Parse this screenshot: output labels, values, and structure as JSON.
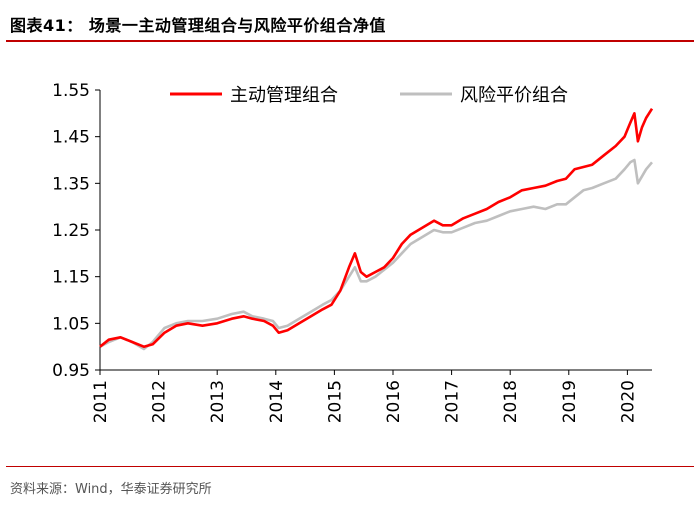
{
  "figure": {
    "title": "图表41：  场景一主动管理组合与风险平价组合净值",
    "source": "资料来源：Wind，华泰证券研究所"
  },
  "chart_data": {
    "type": "line",
    "title": "",
    "xlabel": "",
    "ylabel": "",
    "ylim": [
      0.95,
      1.55
    ],
    "yticks": [
      "0.95",
      "1.05",
      "1.15",
      "1.25",
      "1.35",
      "1.45",
      "1.55"
    ],
    "xlim": [
      2011,
      2020.42
    ],
    "xticks": [
      "2011",
      "2012",
      "2013",
      "2014",
      "2015",
      "2016",
      "2017",
      "2018",
      "2019",
      "2020"
    ],
    "grid": false,
    "legend_position": "top",
    "series": [
      {
        "name": "主动管理组合",
        "color": "#ff0000",
        "x": [
          2011.0,
          2011.15,
          2011.35,
          2011.55,
          2011.75,
          2011.9,
          2012.1,
          2012.3,
          2012.5,
          2012.75,
          2013.0,
          2013.25,
          2013.45,
          2013.6,
          2013.8,
          2013.95,
          2014.05,
          2014.2,
          2014.4,
          2014.6,
          2014.8,
          2014.95,
          2015.1,
          2015.25,
          2015.35,
          2015.45,
          2015.55,
          2015.7,
          2015.85,
          2016.0,
          2016.15,
          2016.3,
          2016.5,
          2016.7,
          2016.85,
          2017.0,
          2017.2,
          2017.4,
          2017.6,
          2017.8,
          2018.0,
          2018.2,
          2018.4,
          2018.6,
          2018.8,
          2018.95,
          2019.1,
          2019.25,
          2019.4,
          2019.6,
          2019.8,
          2019.95,
          2020.05,
          2020.12,
          2020.18,
          2020.25,
          2020.32,
          2020.42
        ],
        "y": [
          1.0,
          1.015,
          1.02,
          1.01,
          1.0,
          1.005,
          1.03,
          1.045,
          1.05,
          1.045,
          1.05,
          1.06,
          1.065,
          1.06,
          1.055,
          1.045,
          1.03,
          1.035,
          1.05,
          1.065,
          1.08,
          1.09,
          1.12,
          1.17,
          1.2,
          1.16,
          1.15,
          1.16,
          1.17,
          1.19,
          1.22,
          1.24,
          1.255,
          1.27,
          1.26,
          1.26,
          1.275,
          1.285,
          1.295,
          1.31,
          1.32,
          1.335,
          1.34,
          1.345,
          1.355,
          1.36,
          1.38,
          1.385,
          1.39,
          1.41,
          1.43,
          1.45,
          1.48,
          1.5,
          1.44,
          1.47,
          1.49,
          1.51
        ]
      },
      {
        "name": "风险平价组合",
        "color": "#bfbfbf",
        "x": [
          2011.0,
          2011.15,
          2011.35,
          2011.55,
          2011.75,
          2011.9,
          2012.1,
          2012.3,
          2012.5,
          2012.75,
          2013.0,
          2013.25,
          2013.45,
          2013.6,
          2013.8,
          2013.95,
          2014.05,
          2014.2,
          2014.4,
          2014.6,
          2014.8,
          2014.95,
          2015.1,
          2015.25,
          2015.35,
          2015.45,
          2015.55,
          2015.7,
          2015.85,
          2016.0,
          2016.15,
          2016.3,
          2016.5,
          2016.7,
          2016.85,
          2017.0,
          2017.2,
          2017.4,
          2017.6,
          2017.8,
          2018.0,
          2018.2,
          2018.4,
          2018.6,
          2018.8,
          2018.95,
          2019.1,
          2019.25,
          2019.4,
          2019.6,
          2019.8,
          2019.95,
          2020.05,
          2020.12,
          2020.18,
          2020.25,
          2020.32,
          2020.42
        ],
        "y": [
          1.0,
          1.01,
          1.02,
          1.01,
          0.995,
          1.01,
          1.04,
          1.05,
          1.055,
          1.055,
          1.06,
          1.07,
          1.075,
          1.065,
          1.06,
          1.055,
          1.04,
          1.045,
          1.06,
          1.075,
          1.09,
          1.1,
          1.12,
          1.15,
          1.17,
          1.14,
          1.14,
          1.15,
          1.165,
          1.18,
          1.2,
          1.22,
          1.235,
          1.25,
          1.245,
          1.245,
          1.255,
          1.265,
          1.27,
          1.28,
          1.29,
          1.295,
          1.3,
          1.295,
          1.305,
          1.305,
          1.32,
          1.335,
          1.34,
          1.35,
          1.36,
          1.38,
          1.395,
          1.4,
          1.35,
          1.365,
          1.38,
          1.395
        ]
      }
    ]
  }
}
